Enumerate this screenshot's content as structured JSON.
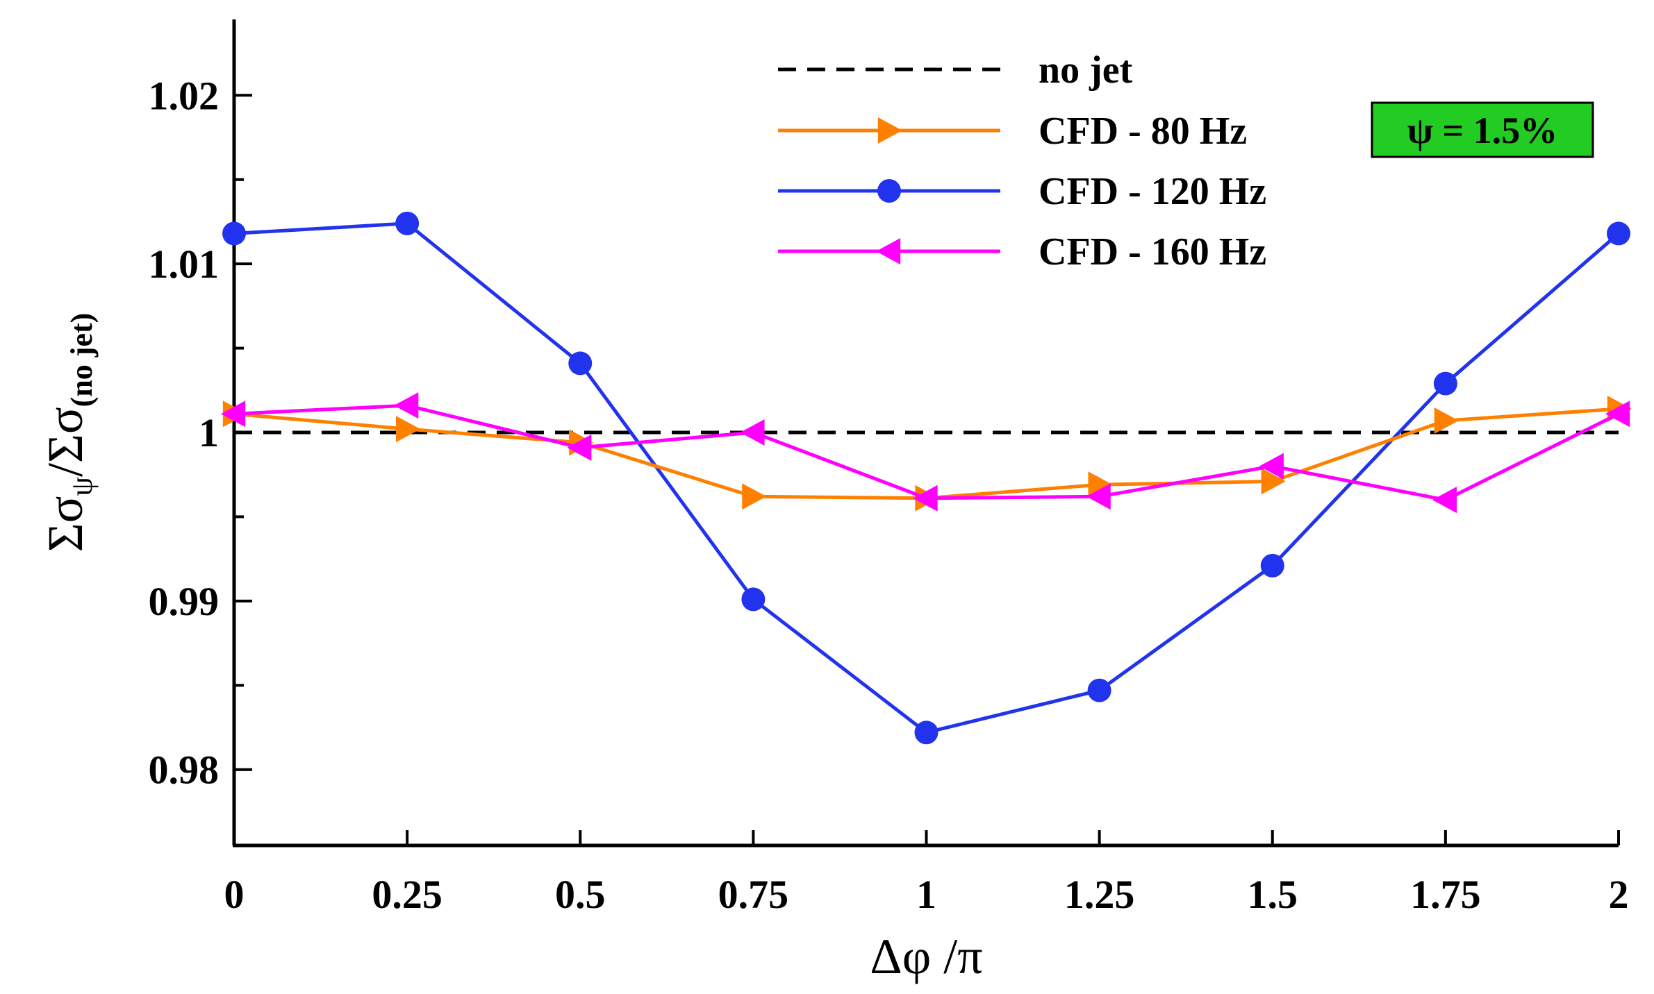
{
  "chart_data": {
    "type": "line",
    "title": "",
    "xlabel": "Δφ /π",
    "ylabel": {
      "sigma1": "Σσ",
      "sub1": "ψ",
      "slash": "/",
      "sigma2": "Σσ",
      "sub2": "(no jet)"
    },
    "xlim": [
      0,
      2
    ],
    "ylim": [
      0.9755,
      1.0245
    ],
    "x_ticks": [
      0,
      0.25,
      0.5,
      0.75,
      1,
      1.25,
      1.5,
      1.75,
      2
    ],
    "x_tick_labels": [
      "0",
      "0.25",
      "0.5",
      "0.75",
      "1",
      "1.25",
      "1.5",
      "1.75",
      "2"
    ],
    "y_major_ticks": [
      0.98,
      0.99,
      1.0,
      1.01,
      1.02
    ],
    "y_tick_labels": [
      "0.98",
      "0.99",
      "1",
      "1.01",
      "1.02"
    ],
    "y_minor_ticks": [
      0.985,
      0.995,
      1.005,
      1.015
    ],
    "grid": false,
    "legend_position": "top-right",
    "reference_line": {
      "name": "no jet",
      "y": 1.0,
      "color": "#000000",
      "style": "dashed"
    },
    "series": [
      {
        "name": "CFD - 80 Hz",
        "color": "#FF8000",
        "marker": "triangle-right",
        "x": [
          0,
          0.25,
          0.5,
          0.75,
          1,
          1.25,
          1.5,
          1.75,
          2
        ],
        "y": [
          1.0011,
          1.0002,
          0.9994,
          0.9962,
          0.9961,
          0.9969,
          0.9971,
          1.0007,
          1.0014
        ]
      },
      {
        "name": "CFD - 120 Hz",
        "color": "#2233EE",
        "marker": "circle",
        "x": [
          0,
          0.25,
          0.5,
          0.75,
          1,
          1.25,
          1.5,
          1.75,
          2
        ],
        "y": [
          1.0118,
          1.0124,
          1.0041,
          0.9901,
          0.9822,
          0.9847,
          0.9921,
          1.0029,
          1.0118
        ]
      },
      {
        "name": "CFD - 160 Hz",
        "color": "#FF00FF",
        "marker": "triangle-left",
        "x": [
          0,
          0.25,
          0.5,
          0.75,
          1,
          1.25,
          1.5,
          1.75,
          2
        ],
        "y": [
          1.0011,
          1.0016,
          0.9991,
          1.0,
          0.9961,
          0.9962,
          0.998,
          0.996,
          1.0011
        ]
      }
    ],
    "annotation": {
      "text": "ψ = 1.5%",
      "background": "#22CC22"
    }
  }
}
